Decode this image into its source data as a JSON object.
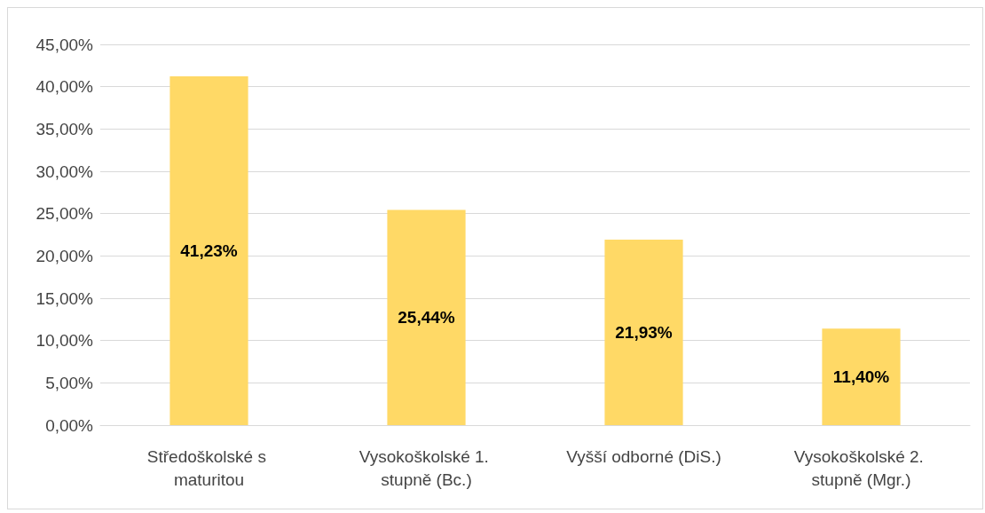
{
  "chart_data": {
    "type": "bar",
    "categories": [
      "Středoškolské s maturitou",
      "Vysokoškolské 1. stupně (Bc.)",
      "Vyšší odborné (DiS.)",
      "Vysokoškolské 2. stupně (Mgr.)"
    ],
    "values": [
      41.23,
      25.44,
      21.93,
      11.4
    ],
    "value_labels": [
      "41,23%",
      "25,44%",
      "21,93%",
      "11,40%"
    ],
    "color": "#ffd966",
    "ylim": [
      0,
      45
    ],
    "yticks": [
      {
        "value": 0,
        "label": "0,00%"
      },
      {
        "value": 5,
        "label": "5,00%"
      },
      {
        "value": 10,
        "label": "10,00%"
      },
      {
        "value": 15,
        "label": "15,00%"
      },
      {
        "value": 20,
        "label": "20,00%"
      },
      {
        "value": 25,
        "label": "25,00%"
      },
      {
        "value": 30,
        "label": "30,00%"
      },
      {
        "value": 35,
        "label": "35,00%"
      },
      {
        "value": 40,
        "label": "40,00%"
      },
      {
        "value": 45,
        "label": "45,00%"
      }
    ],
    "grid": "y"
  }
}
